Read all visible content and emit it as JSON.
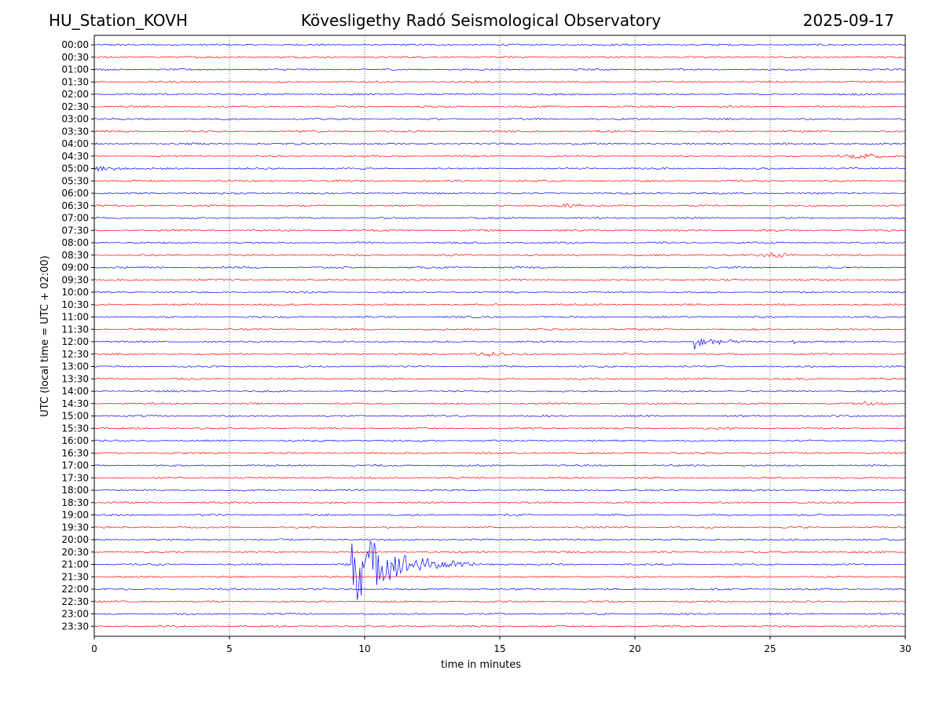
{
  "header": {
    "station": "HU_Station_KOVH",
    "observatory": "Kövesligethy Radó Seismological Observatory",
    "date": "2025-09-17"
  },
  "chart_data": {
    "type": "line",
    "title": "Kövesligethy Radó Seismological Observatory",
    "xlabel": "time in minutes",
    "ylabel": "UTC (local time = UTC + 02:00)",
    "xlim": [
      0,
      30
    ],
    "xticks": [
      "0",
      "5",
      "10",
      "15",
      "20",
      "25",
      "30"
    ],
    "grid": "vertical dotted at each x tick",
    "colors": {
      "even_rows": "#0000ff",
      "odd_rows": "#ff0000"
    },
    "traces": [
      "00:00",
      "00:30",
      "01:00",
      "01:30",
      "02:00",
      "02:30",
      "03:00",
      "03:30",
      "04:00",
      "04:30",
      "05:00",
      "05:30",
      "06:00",
      "06:30",
      "07:00",
      "07:30",
      "08:00",
      "08:30",
      "09:00",
      "09:30",
      "10:00",
      "10:30",
      "11:00",
      "11:30",
      "12:00",
      "12:30",
      "13:00",
      "13:30",
      "14:00",
      "14:30",
      "15:00",
      "15:30",
      "16:00",
      "16:30",
      "17:00",
      "17:30",
      "18:00",
      "18:30",
      "19:00",
      "19:30",
      "20:00",
      "20:30",
      "21:00",
      "21:30",
      "22:00",
      "22:30",
      "23:00",
      "23:30"
    ],
    "events": [
      {
        "trace": "21:00",
        "onset_min": 9.5,
        "amp": 55,
        "decay_min": 1.4,
        "type": "quake"
      },
      {
        "trace": "12:00",
        "onset_min": 22.2,
        "amp": 10,
        "decay_min": 0.7,
        "type": "quake"
      },
      {
        "trace": "12:00",
        "onset_min": 25.8,
        "amp": 7,
        "decay_min": 0.2,
        "type": "quake"
      },
      {
        "trace": "14:30",
        "onset_min": 28.5,
        "amp": 4,
        "decay_min": 0.6,
        "type": "quake"
      },
      {
        "trace": "08:30",
        "onset_min": 25.2,
        "amp": 3,
        "decay_min": 0.9,
        "type": "burst"
      },
      {
        "trace": "06:30",
        "onset_min": 17.6,
        "amp": 3,
        "decay_min": 0.8,
        "type": "burst"
      },
      {
        "trace": "05:00",
        "onset_min": 0.0,
        "amp": 3,
        "decay_min": 1.6,
        "type": "burst"
      },
      {
        "trace": "04:30",
        "onset_min": 28.5,
        "amp": 3,
        "decay_min": 1.5,
        "type": "burst"
      },
      {
        "trace": "12:30",
        "onset_min": 14.5,
        "amp": 2.5,
        "decay_min": 1.0,
        "type": "burst"
      }
    ]
  }
}
